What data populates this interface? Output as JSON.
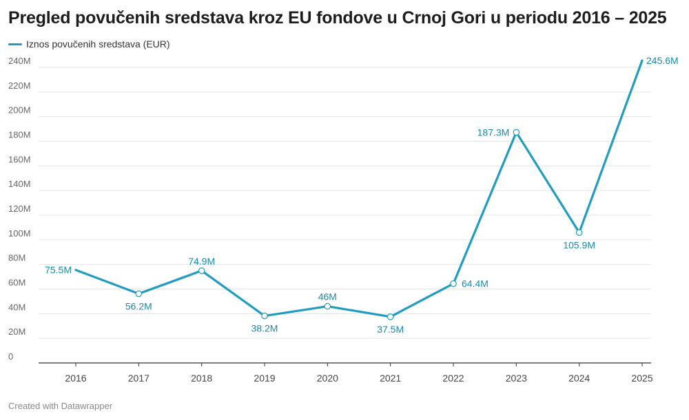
{
  "chart_data": {
    "type": "line",
    "title": "Pregled povučenih sredstava kroz EU fondove u Crnoj Gori u periodu 2016 – 2025",
    "x": [
      "2016",
      "2017",
      "2018",
      "2019",
      "2020",
      "2021",
      "2022",
      "2023",
      "2024",
      "2025"
    ],
    "series": [
      {
        "name": "Iznos povučenih sredstava (EUR)",
        "values": [
          75.5,
          56.2,
          74.9,
          38.2,
          46,
          37.5,
          64.4,
          187.3,
          105.9,
          245.6
        ],
        "labels": [
          "75.5M",
          "56.2M",
          "74.9M",
          "38.2M",
          "46M",
          "37.5M",
          "64.4M",
          "187.3M",
          "105.9M",
          "245.6M"
        ],
        "color": "#1f9cc0"
      }
    ],
    "ylim": [
      0,
      240
    ],
    "yticks": [
      0,
      20,
      40,
      60,
      80,
      100,
      120,
      140,
      160,
      180,
      200,
      220,
      240
    ],
    "ytick_labels": [
      "0",
      "20M",
      "40M",
      "60M",
      "80M",
      "100M",
      "120M",
      "140M",
      "160M",
      "180M",
      "200M",
      "220M",
      "240M"
    ],
    "grid": true,
    "legend": "top-left",
    "label_color": "#1b8aaa"
  },
  "footer": "Created with Datawrapper"
}
